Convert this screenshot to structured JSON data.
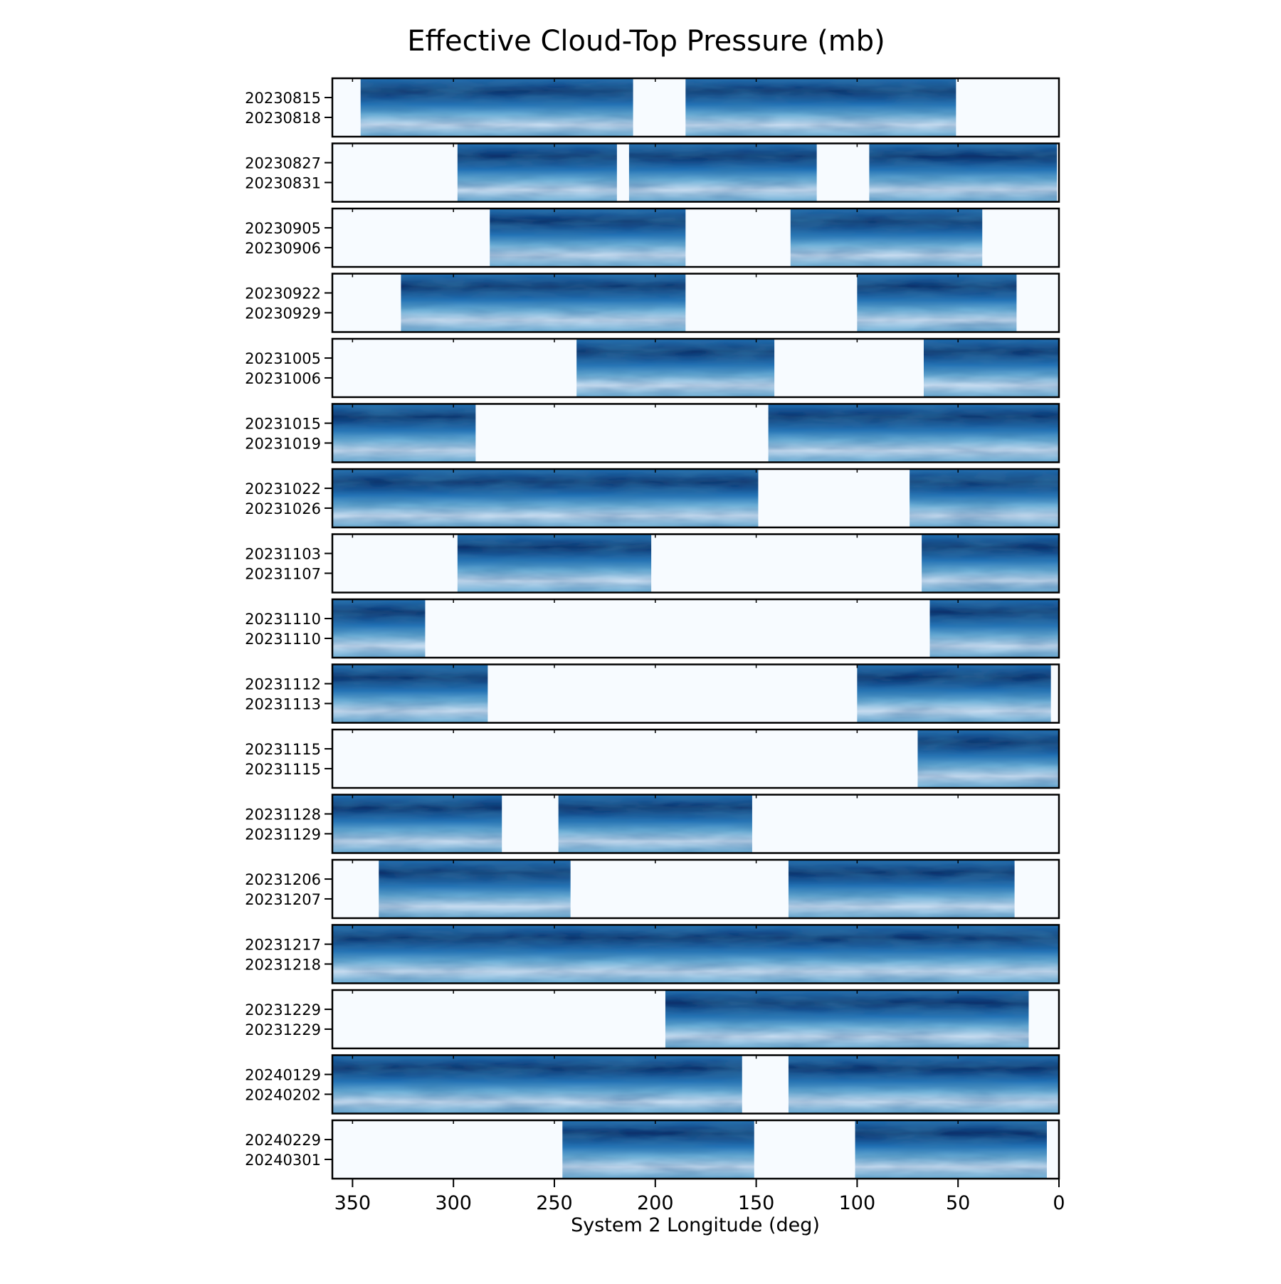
{
  "chart_data": {
    "type": "heatmap",
    "title": "Effective Cloud-Top Pressure (mb)",
    "xlabel": "System 2 Longitude (deg)",
    "ylabel": "",
    "xlim": [
      360,
      0
    ],
    "x_ticks": [
      350,
      300,
      250,
      200,
      150,
      100,
      50,
      0
    ],
    "x_tick_labels": [
      "350",
      "300",
      "250",
      "200",
      "150",
      "100",
      "50",
      "0"
    ],
    "colormap": "Blues",
    "colormap_colors": [
      "#f7fbff",
      "#c6dbef",
      "#6baed6",
      "#2171b5",
      "#08306b"
    ],
    "background_color": "#f7fbff",
    "panels": [
      {
        "dates": [
          "20230815",
          "20230818"
        ],
        "segments": [
          [
            346,
            211
          ],
          [
            185,
            51
          ]
        ]
      },
      {
        "dates": [
          "20230827",
          "20230831"
        ],
        "segments": [
          [
            298,
            219
          ],
          [
            213,
            120
          ],
          [
            94,
            1
          ]
        ]
      },
      {
        "dates": [
          "20230905",
          "20230906"
        ],
        "segments": [
          [
            282,
            185
          ],
          [
            133,
            38
          ]
        ]
      },
      {
        "dates": [
          "20230922",
          "20230929"
        ],
        "segments": [
          [
            326,
            185
          ],
          [
            100,
            21
          ]
        ]
      },
      {
        "dates": [
          "20231005",
          "20231006"
        ],
        "segments": [
          [
            239,
            141
          ],
          [
            67,
            0
          ]
        ]
      },
      {
        "dates": [
          "20231015",
          "20231019"
        ],
        "segments": [
          [
            360,
            289
          ],
          [
            144,
            0
          ]
        ]
      },
      {
        "dates": [
          "20231022",
          "20231026"
        ],
        "segments": [
          [
            360,
            149
          ],
          [
            74,
            0
          ]
        ]
      },
      {
        "dates": [
          "20231103",
          "20231107"
        ],
        "segments": [
          [
            298,
            202
          ],
          [
            68,
            0
          ]
        ]
      },
      {
        "dates": [
          "20231110",
          "20231110"
        ],
        "segments": [
          [
            360,
            314
          ],
          [
            64,
            0
          ]
        ]
      },
      {
        "dates": [
          "20231112",
          "20231113"
        ],
        "segments": [
          [
            360,
            283
          ],
          [
            100,
            4
          ]
        ]
      },
      {
        "dates": [
          "20231115",
          "20231115"
        ],
        "segments": [
          [
            70,
            0
          ]
        ]
      },
      {
        "dates": [
          "20231128",
          "20231129"
        ],
        "segments": [
          [
            360,
            276
          ],
          [
            248,
            152
          ]
        ]
      },
      {
        "dates": [
          "20231206",
          "20231207"
        ],
        "segments": [
          [
            337,
            242
          ],
          [
            134,
            22
          ]
        ]
      },
      {
        "dates": [
          "20231217",
          "20231218"
        ],
        "segments": [
          [
            360,
            0
          ]
        ]
      },
      {
        "dates": [
          "20231229",
          "20231229"
        ],
        "segments": [
          [
            195,
            15
          ]
        ]
      },
      {
        "dates": [
          "20240129",
          "20240202"
        ],
        "segments": [
          [
            360,
            157
          ],
          [
            134,
            0
          ]
        ]
      },
      {
        "dates": [
          "20240229",
          "20240301"
        ],
        "segments": [
          [
            246,
            151
          ],
          [
            101,
            6
          ]
        ]
      }
    ]
  }
}
